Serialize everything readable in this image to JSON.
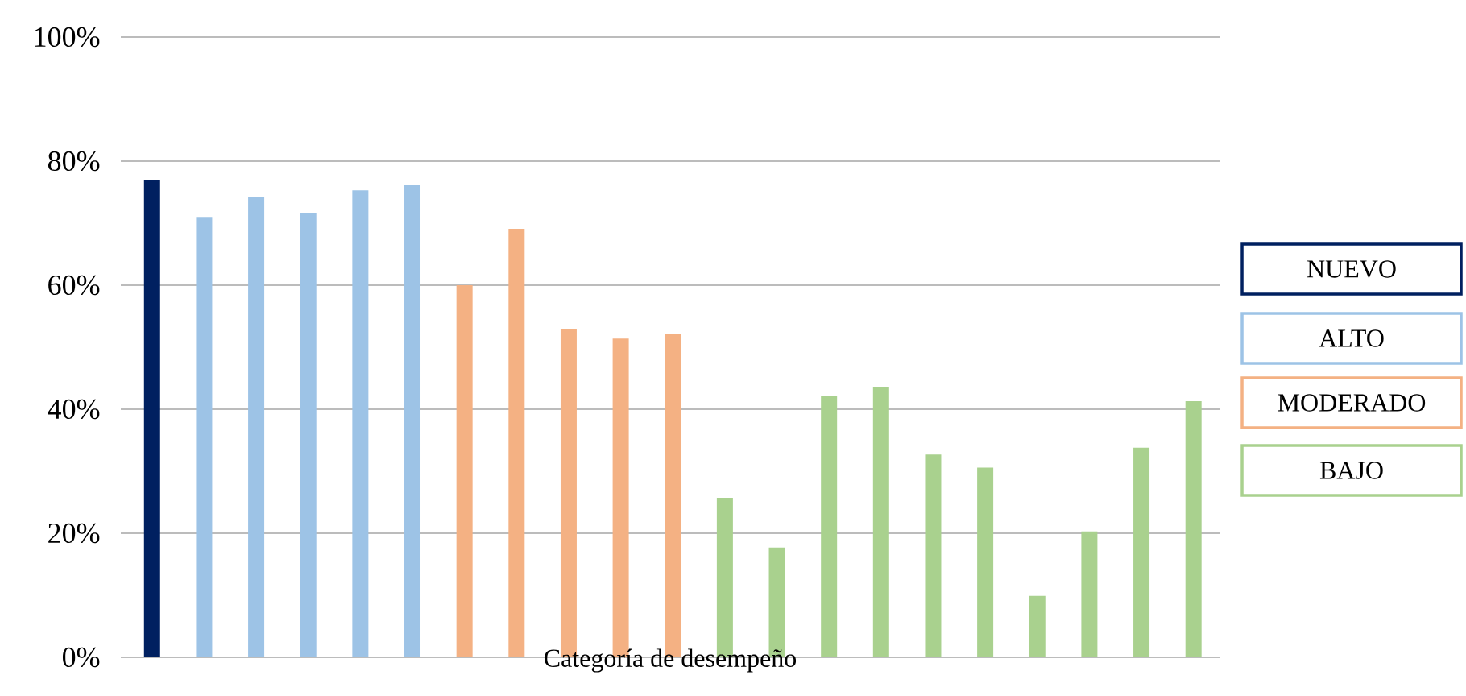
{
  "chart_data": {
    "type": "bar",
    "xlabel": "Categoría de desempeño",
    "categories": [
      null,
      null,
      null,
      null,
      null,
      null,
      null,
      null,
      null,
      null,
      null,
      null,
      null,
      null,
      null,
      null,
      null,
      null,
      null,
      null,
      null
    ],
    "series": [
      {
        "name": "NUEVO",
        "color": "#002060",
        "values": [
          77,
          null,
          null,
          null,
          null,
          null,
          null,
          null,
          null,
          null,
          null,
          null,
          null,
          null,
          null,
          null,
          null,
          null,
          null,
          null,
          null
        ]
      },
      {
        "name": "ALTO",
        "color": "#9dc3e6",
        "values": [
          null,
          71,
          74.3,
          71.7,
          75.3,
          76.1,
          null,
          null,
          null,
          null,
          null,
          null,
          null,
          null,
          null,
          null,
          null,
          null,
          null,
          null,
          null
        ]
      },
      {
        "name": "MODERADO",
        "color": "#f4b183",
        "values": [
          null,
          null,
          null,
          null,
          null,
          null,
          60,
          69.1,
          53,
          51.4,
          52.2,
          null,
          null,
          null,
          null,
          null,
          null,
          null,
          null,
          null,
          null
        ]
      },
      {
        "name": "BAJO",
        "color": "#a9d18e",
        "values": [
          null,
          null,
          null,
          null,
          null,
          null,
          null,
          null,
          null,
          null,
          null,
          25.7,
          17.7,
          42.1,
          43.6,
          32.7,
          30.6,
          9.9,
          20.3,
          33.8,
          41.3
        ]
      }
    ],
    "ylim": [
      0,
      100
    ],
    "yticks": [
      {
        "value": 0,
        "label": "0%"
      },
      {
        "value": 20,
        "label": "20%"
      },
      {
        "value": 40,
        "label": "40%"
      },
      {
        "value": 60,
        "label": "60%"
      },
      {
        "value": 80,
        "label": "80%"
      },
      {
        "value": 100,
        "label": "100%"
      }
    ],
    "grid": "y",
    "legend": "right"
  }
}
